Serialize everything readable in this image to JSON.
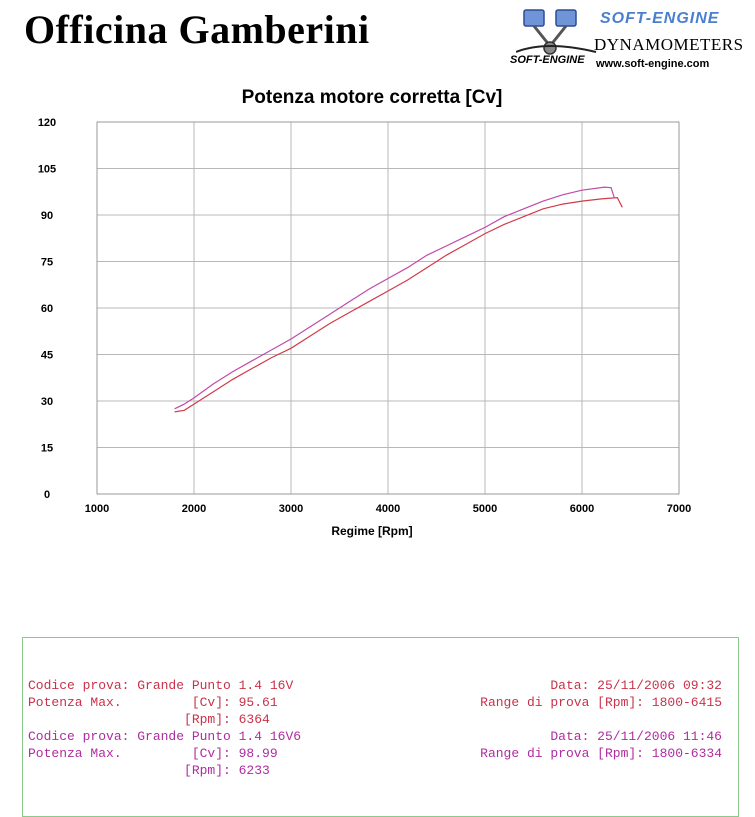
{
  "header": {
    "company": "Officina Gamberini",
    "brand": "SOFT-ENGINE",
    "brand_sub": "SOFT-ENGINE",
    "tagline": "DYNAMOMETERS",
    "website": "www.soft-engine.com"
  },
  "chart_data": {
    "type": "line",
    "title": "Potenza motore corretta [Cv]",
    "xlabel": "Regime [Rpm]",
    "ylabel": "",
    "xlim": [
      1000,
      7000
    ],
    "ylim": [
      0,
      120
    ],
    "xticks": [
      1000,
      2000,
      3000,
      4000,
      5000,
      6000,
      7000
    ],
    "yticks": [
      0,
      15,
      30,
      45,
      60,
      75,
      90,
      105,
      120
    ],
    "grid": true,
    "series": [
      {
        "color": "#d23a4a",
        "x": [
          1800,
          1900,
          2000,
          2200,
          2400,
          2600,
          2800,
          3000,
          3200,
          3400,
          3600,
          3800,
          4000,
          4200,
          4400,
          4600,
          4800,
          5000,
          5200,
          5400,
          5600,
          5800,
          6000,
          6200,
          6364,
          6415
        ],
        "y": [
          26.5,
          27,
          29,
          33,
          37,
          40.5,
          44,
          47,
          51,
          55,
          58.5,
          62,
          65.5,
          69,
          73,
          77,
          80.5,
          84,
          87,
          89.5,
          92,
          93.5,
          94.5,
          95.2,
          95.6,
          92.5
        ]
      },
      {
        "color": "#c04aa8",
        "x": [
          1800,
          1900,
          2000,
          2200,
          2400,
          2600,
          2800,
          3000,
          3200,
          3400,
          3600,
          3800,
          4000,
          4200,
          4400,
          4600,
          4800,
          5000,
          5200,
          5400,
          5600,
          5800,
          6000,
          6233,
          6300,
          6334
        ],
        "y": [
          27.5,
          29,
          31,
          35.5,
          39.5,
          43,
          46.5,
          50,
          54,
          58,
          62,
          66,
          69.5,
          73,
          77,
          80,
          83,
          86,
          89.5,
          92,
          94.5,
          96.5,
          98,
          99,
          98.8,
          95.5
        ]
      }
    ]
  },
  "legend": {
    "line1": "Codice prova: Grande Punto 1.4 16V",
    "line1r": "Data: 25/11/2006 09:32",
    "line2": "Potenza Max.         [Cv]: 95.61",
    "line2r": "Range di prova [Rpm]: 1800-6415",
    "line3": "                    [Rpm]: 6364",
    "line4": "Codice prova: Grande Punto 1.4 16V6",
    "line4r": "Data: 25/11/2006 11:46",
    "line5": "Potenza Max.         [Cv]: 98.99",
    "line5r": "Range di prova [Rpm]: 1800-6334",
    "line6": "                    [Rpm]: 6233"
  }
}
